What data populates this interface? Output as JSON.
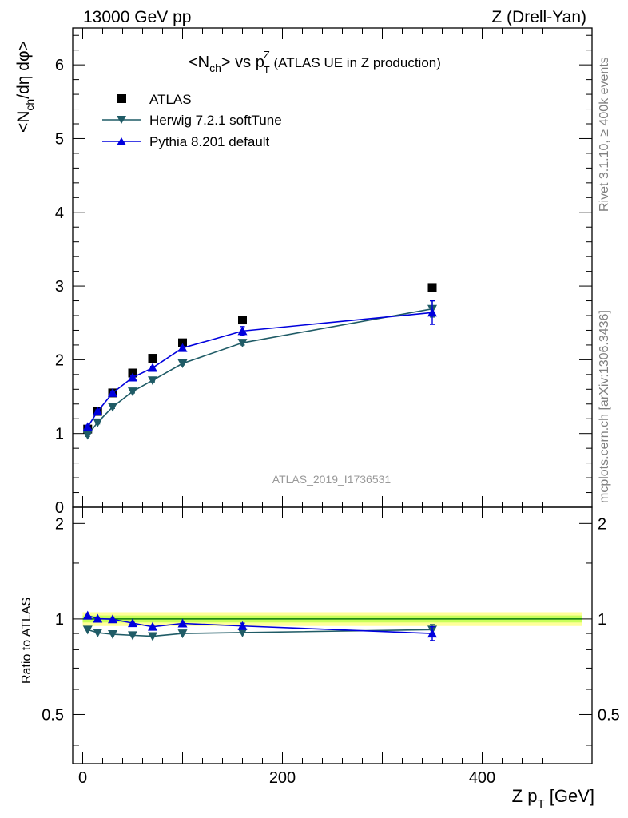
{
  "header": {
    "left": "13000 GeV pp",
    "right": "Z (Drell-Yan)"
  },
  "side_text": {
    "rivet": "Rivet 3.1.10, ≥ 400k events",
    "mcplots": "mcplots.cern.ch [arXiv:1306.3436]"
  },
  "chart_data": [
    {
      "type": "scatter",
      "title_main": "<N",
      "title_sub1": "ch",
      "title_mid": "> vs p",
      "title_sup": "Z",
      "title_sub2": "T",
      "title_tail": " (ATLAS UE in Z production)",
      "ylabel": "<N_ch/dη dφ>",
      "ylabel_a": "<N",
      "ylabel_sub": "ch",
      "ylabel_b": "/dη dφ>",
      "watermark": "ATLAS_2019_I1736531",
      "xlim": [
        -10,
        510
      ],
      "ylim": [
        0,
        6.5
      ],
      "y_ticks": [
        "0",
        "1",
        "2",
        "3",
        "4",
        "5",
        "6"
      ],
      "legend_placement": "top-left",
      "series": [
        {
          "name": "ATLAS",
          "color": "#000000",
          "marker": "square",
          "x": [
            5,
            15,
            30,
            50,
            70,
            100,
            160,
            350
          ],
          "y": [
            1.06,
            1.3,
            1.55,
            1.82,
            2.02,
            2.23,
            2.54,
            2.98
          ]
        },
        {
          "name": "Herwig 7.2.1 softTune",
          "color": "#1f5b66",
          "marker": "triangle-down",
          "x": [
            5,
            15,
            30,
            50,
            70,
            100,
            160,
            350
          ],
          "y": [
            0.98,
            1.15,
            1.36,
            1.57,
            1.72,
            1.95,
            2.23,
            2.69
          ],
          "err": [
            0.02,
            0.02,
            0.02,
            0.02,
            0.02,
            0.02,
            0.03,
            0.11
          ]
        },
        {
          "name": "Pythia 8.201 default",
          "color": "#0000dd",
          "marker": "triangle-up",
          "x": [
            5,
            15,
            30,
            50,
            70,
            100,
            160,
            350
          ],
          "y": [
            1.09,
            1.3,
            1.55,
            1.76,
            1.89,
            2.16,
            2.39,
            2.64
          ],
          "err": [
            0.02,
            0.02,
            0.02,
            0.02,
            0.02,
            0.02,
            0.06,
            0.16
          ]
        }
      ]
    },
    {
      "type": "scatter",
      "ylabel": "Ratio to ATLAS",
      "xlabel_a": "Z p",
      "xlabel_sub": "T",
      "xlabel_b": " [GeV]",
      "xlim": [
        -10,
        510
      ],
      "ylim": [
        0.35,
        2.25
      ],
      "log_y": true,
      "x_ticks": [
        "0",
        "200",
        "400"
      ],
      "y_ticks": [
        "0.5",
        "1",
        "2"
      ],
      "reference_band": {
        "value": 1.0,
        "inner": 0.025,
        "outer": 0.05,
        "inner_color": "#c8ff5a",
        "outer_color": "#ffff99",
        "line_color": "#0a7a0a"
      },
      "series": [
        {
          "name": "Herwig 7.2.1 softTune",
          "color": "#1f5b66",
          "marker": "triangle-down",
          "x": [
            5,
            15,
            30,
            50,
            70,
            100,
            160,
            350
          ],
          "y": [
            0.925,
            0.905,
            0.895,
            0.888,
            0.882,
            0.9,
            0.906,
            0.925
          ],
          "err": [
            0.01,
            0.01,
            0.01,
            0.01,
            0.01,
            0.01,
            0.015,
            0.035
          ]
        },
        {
          "name": "Pythia 8.201 default",
          "color": "#0000dd",
          "marker": "triangle-up",
          "x": [
            5,
            15,
            30,
            50,
            70,
            100,
            160,
            350
          ],
          "y": [
            1.025,
            1.002,
            0.998,
            0.97,
            0.945,
            0.968,
            0.95,
            0.9
          ],
          "err": [
            0.01,
            0.01,
            0.01,
            0.01,
            0.01,
            0.01,
            0.02,
            0.045
          ]
        }
      ]
    }
  ]
}
